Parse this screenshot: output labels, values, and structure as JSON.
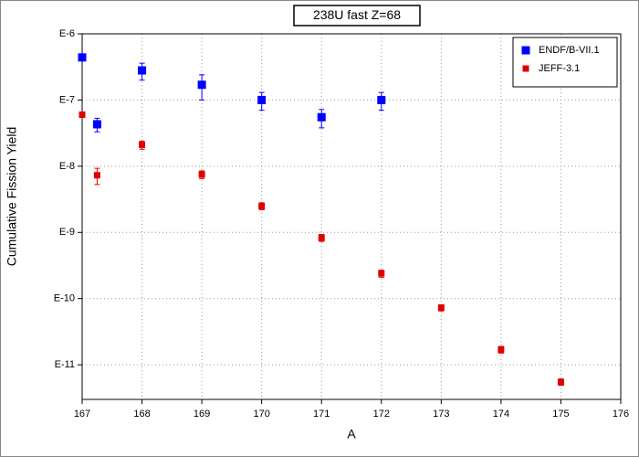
{
  "chart_data": {
    "type": "scatter",
    "title": "238U fast Z=68",
    "x_label": "A",
    "y_label": "Cumulative Fission Yield",
    "xlim": [
      167,
      176
    ],
    "xticks": [
      167,
      168,
      169,
      170,
      171,
      172,
      173,
      174,
      175,
      176
    ],
    "ylim": [
      3e-12,
      1e-06
    ],
    "log_y": true,
    "grid": true,
    "legend": "top-right",
    "yticks": [
      {
        "value": 1e-06,
        "label": "E-6"
      },
      {
        "value": 1e-07,
        "label": "E-7"
      },
      {
        "value": 1e-08,
        "label": "E-8"
      },
      {
        "value": 1e-09,
        "label": "E-9"
      },
      {
        "value": 1e-10,
        "label": "E-10"
      },
      {
        "value": 1e-11,
        "label": "E-11"
      }
    ],
    "series": [
      {
        "name": "ENDF/B-VII.1",
        "color": "#0000ff",
        "marker_size": 9,
        "x": [
          167,
          167.25,
          168,
          169,
          170,
          171,
          172
        ],
        "values": [
          4.4e-07,
          4.3e-08,
          2.8e-07,
          1.7e-07,
          1e-07,
          5.5e-08,
          1e-07
        ],
        "errors": [
          4e-08,
          1e-08,
          8e-08,
          7e-08,
          3e-08,
          1.7e-08,
          3e-08
        ]
      },
      {
        "name": "JEFF-3.1",
        "color": "#e00000",
        "marker_size": 7,
        "x": [
          167,
          167.25,
          168,
          169,
          170,
          171,
          172,
          173,
          174,
          175
        ],
        "values": [
          6e-08,
          7.3e-09,
          2.1e-08,
          7.5e-09,
          2.5e-09,
          8.3e-10,
          2.4e-10,
          7.3e-11,
          1.7e-11,
          5.5e-12
        ],
        "errors": [
          5e-09,
          2e-09,
          3e-09,
          1e-09,
          3e-10,
          1e-10,
          3e-11,
          8e-12,
          2e-12,
          6e-13
        ]
      }
    ]
  }
}
